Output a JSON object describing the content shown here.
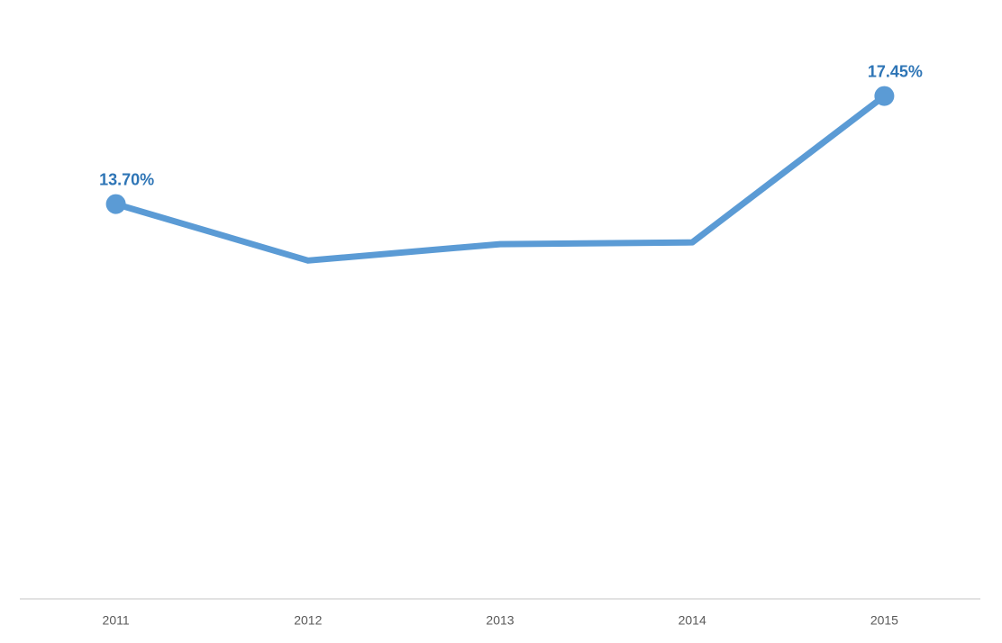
{
  "chart_data": {
    "type": "line",
    "categories": [
      "2011",
      "2012",
      "2013",
      "2014",
      "2015"
    ],
    "values": [
      13.7,
      11.74,
      12.31,
      12.37,
      17.45
    ],
    "value_labels": [
      "13.70%",
      null,
      null,
      null,
      "17.45%"
    ],
    "color": "#5b9bd5",
    "ylim": [
      0,
      20
    ]
  }
}
